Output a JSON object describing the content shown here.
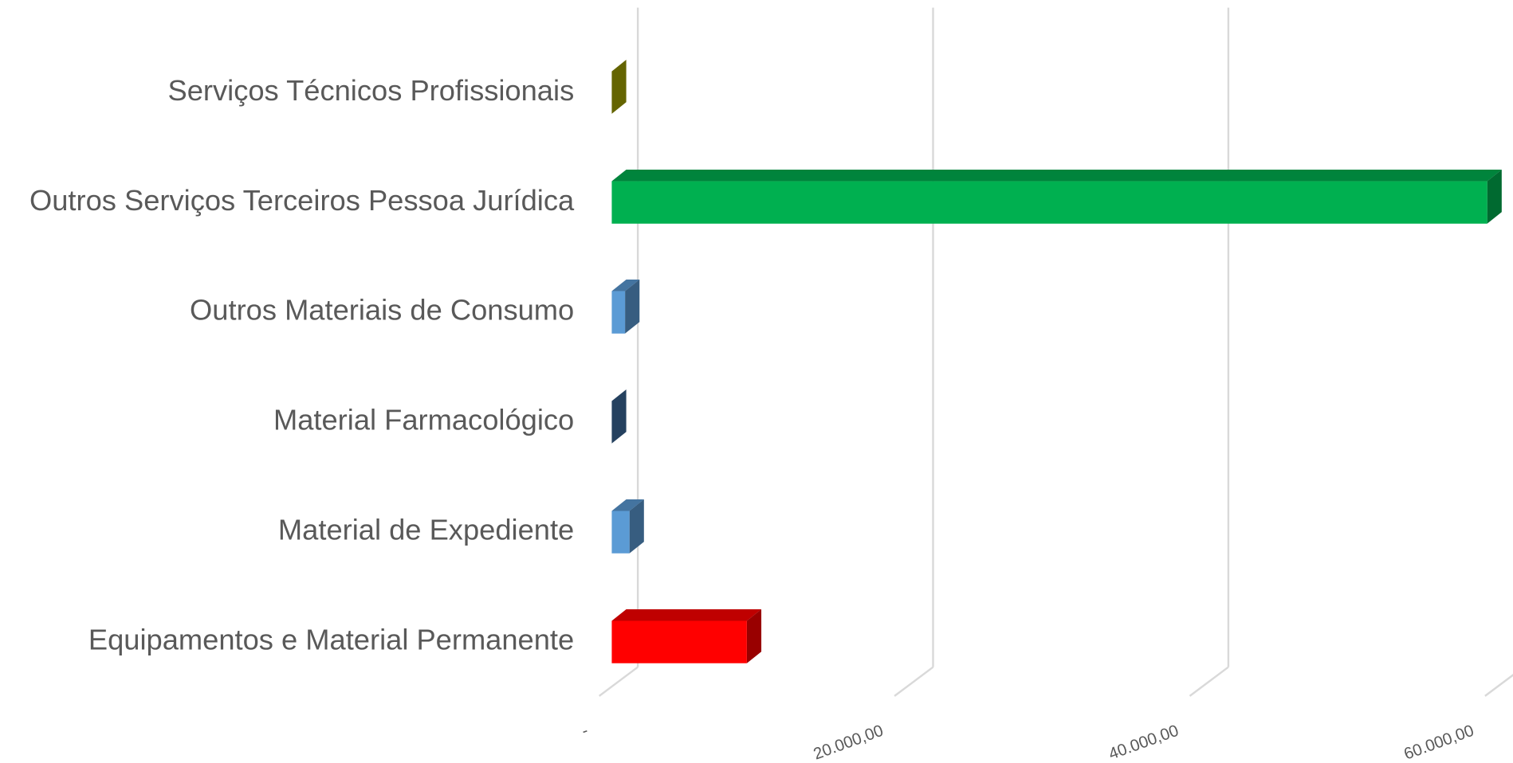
{
  "chart_data": {
    "type": "bar3d-horizontal",
    "categories": [
      "Serviços Técnicos Profissionais",
      "Outros Serviços Terceiros Pessoa Jurídica",
      "Outros Materiais de Consumo",
      "Material Farmacológico",
      "Material de Expediente",
      "Equipamentos e Material Permanente"
    ],
    "values": [
      0,
      59300,
      900,
      0,
      1200,
      9150
    ],
    "colors": [
      "#a6a600",
      "#00b050",
      "#5b9bd5",
      "#3d6d9e",
      "#5b9bd5",
      "#ff0000"
    ],
    "xlim": [
      0,
      60000
    ],
    "xticks": [
      {
        "value": 0,
        "label": "-"
      },
      {
        "value": 20000,
        "label": "20.000,00"
      },
      {
        "value": 40000,
        "label": "40.000,00"
      },
      {
        "value": 60000,
        "label": "60.000,00"
      }
    ],
    "grid": true
  }
}
